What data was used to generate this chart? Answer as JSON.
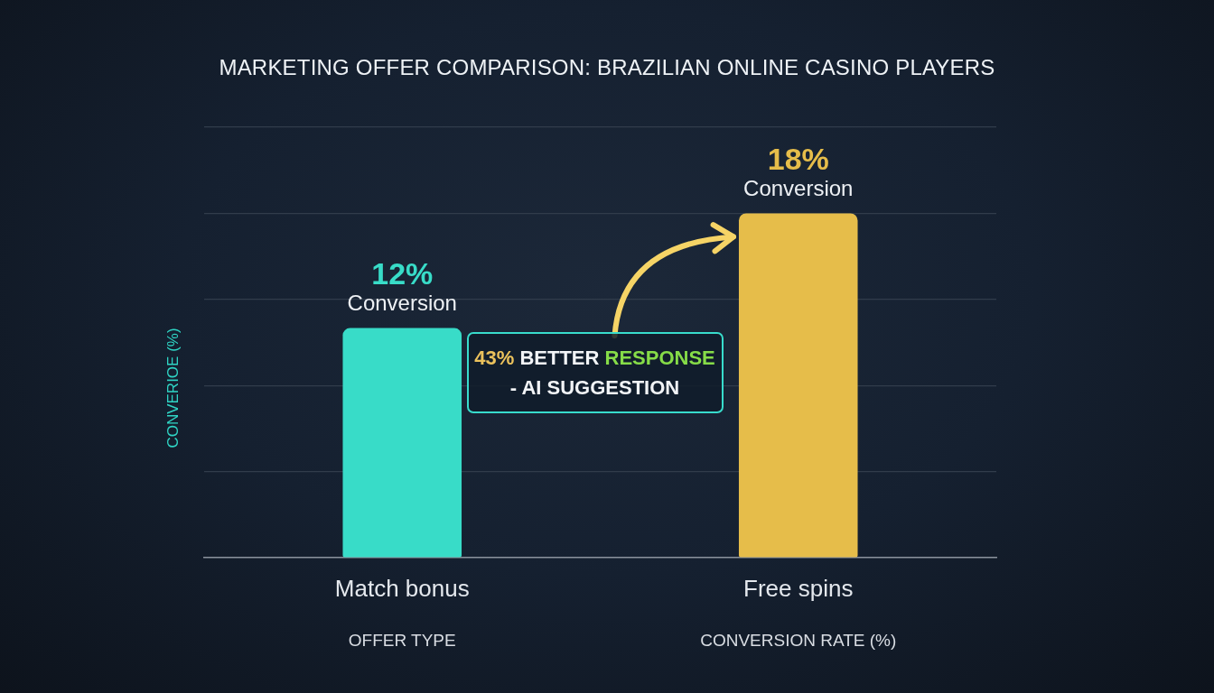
{
  "chart_data": {
    "type": "bar",
    "title": "MARKETING OFFER COMPARISON: BRAZILIAN ONLINE CASINO PLAYERS",
    "xlabel": "OFFER TYPE",
    "ylabel": "CONVERIOE (%)",
    "categories": [
      "Match bonus",
      "Free spins"
    ],
    "values": [
      12,
      18
    ],
    "colors": [
      "#38dcc8",
      "#e6bd4a"
    ],
    "value_labels": [
      "12%\nConversion",
      "18%\nConversion"
    ],
    "ylim": [
      0,
      22.5
    ],
    "yticks": [
      {
        "value": 0,
        "label": null
      },
      {
        "value": 4.5,
        "label": null
      },
      {
        "value": 9,
        "label": null
      },
      {
        "value": 13.5,
        "label": null
      },
      {
        "value": 18,
        "label": null
      },
      {
        "value": 22.5,
        "label": null
      }
    ],
    "grid": "y",
    "tick_labels": "x",
    "annotations": [
      "CONVERSION RATE (%)",
      "43% BETTER RESPONSE - AI SUGGESTION"
    ]
  }
}
